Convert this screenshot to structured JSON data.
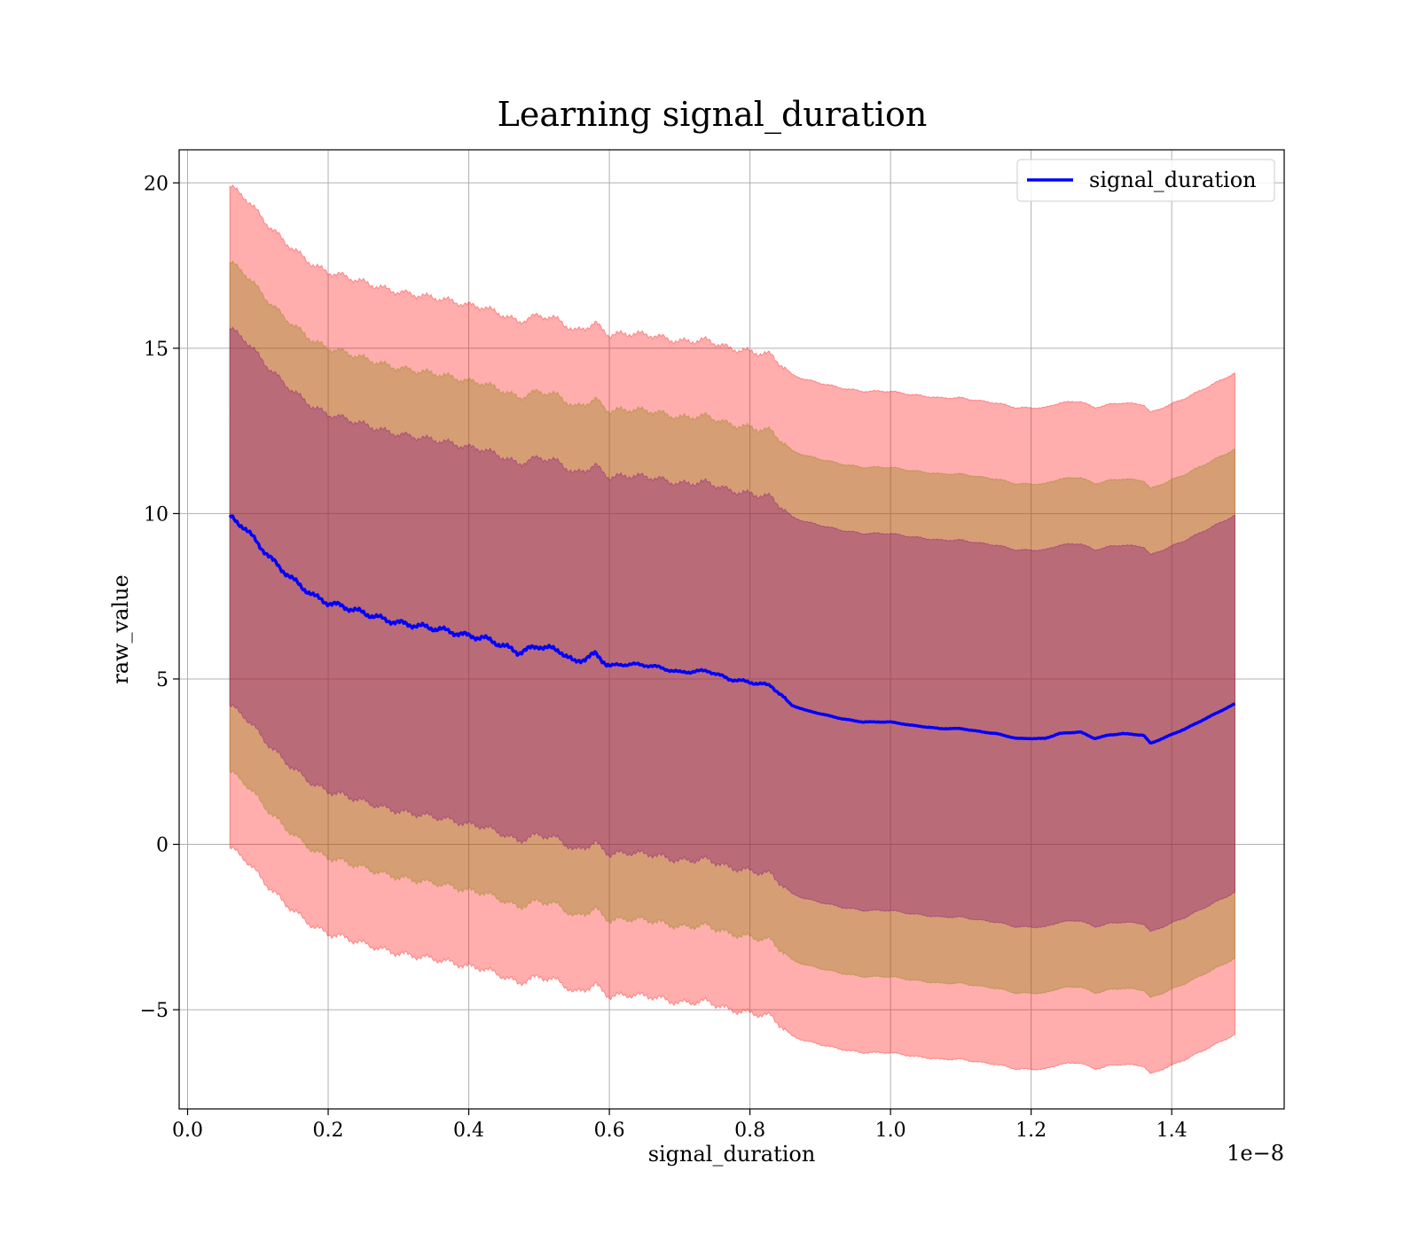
{
  "chart_data": {
    "type": "line",
    "title": "Learning signal_duration",
    "xlabel": "signal_duration",
    "ylabel": "raw_value",
    "x_offset_text": "1e−8",
    "x_scale": 1e-08,
    "xlim": [
      -0.012,
      1.56
    ],
    "ylim": [
      -8,
      21
    ],
    "x_ticks": [
      0.0,
      0.2,
      0.4,
      0.6,
      0.8,
      1.0,
      1.2,
      1.4
    ],
    "x_tick_labels": [
      "0.0",
      "0.2",
      "0.4",
      "0.6",
      "0.8",
      "1.0",
      "1.2",
      "1.4"
    ],
    "y_ticks": [
      -5,
      0,
      5,
      10,
      15,
      20
    ],
    "y_tick_labels": [
      "−5",
      "0",
      "5",
      "10",
      "15",
      "20"
    ],
    "grid": true,
    "legend_position": "top-right",
    "colors": {
      "mean_line": "#0000ff",
      "outer_band": "#ff0000",
      "middle_band": "#808000",
      "inner_band": "#800080",
      "grid": "#b0b0b0"
    },
    "series": [
      {
        "name": "signal_duration",
        "x": [
          0.06,
          0.08,
          0.1,
          0.12,
          0.15,
          0.18,
          0.2,
          0.22,
          0.25,
          0.28,
          0.3,
          0.33,
          0.36,
          0.4,
          0.42,
          0.45,
          0.47,
          0.5,
          0.53,
          0.55,
          0.58,
          0.6,
          0.63,
          0.66,
          0.7,
          0.74,
          0.77,
          0.8,
          0.83,
          0.86,
          0.88,
          0.9,
          0.93,
          0.96,
          1.0,
          1.03,
          1.07,
          1.1,
          1.13,
          1.15,
          1.18,
          1.2,
          1.22,
          1.24,
          1.27,
          1.29,
          1.31,
          1.33,
          1.36,
          1.37,
          1.42,
          1.49
        ],
        "mean": [
          9.9,
          9.6,
          9.1,
          8.6,
          8.0,
          7.5,
          7.3,
          7.2,
          7.0,
          6.8,
          6.7,
          6.6,
          6.5,
          6.3,
          6.25,
          6.0,
          5.8,
          6.0,
          5.85,
          5.5,
          5.75,
          5.4,
          5.45,
          5.4,
          5.2,
          5.25,
          5.0,
          4.9,
          4.8,
          4.2,
          4.05,
          3.95,
          3.8,
          3.7,
          3.7,
          3.6,
          3.5,
          3.5,
          3.4,
          3.35,
          3.2,
          3.2,
          3.2,
          3.35,
          3.4,
          3.2,
          3.3,
          3.35,
          3.3,
          3.05,
          3.5,
          4.25
        ]
      }
    ],
    "bands": [
      {
        "half_width": 10,
        "color": "#ff0000",
        "opacity": 0.32
      },
      {
        "half_width": 7.7,
        "color": "#808000",
        "opacity": 0.32
      },
      {
        "half_width": 5.7,
        "color": "#800080",
        "opacity": 0.32
      }
    ]
  }
}
